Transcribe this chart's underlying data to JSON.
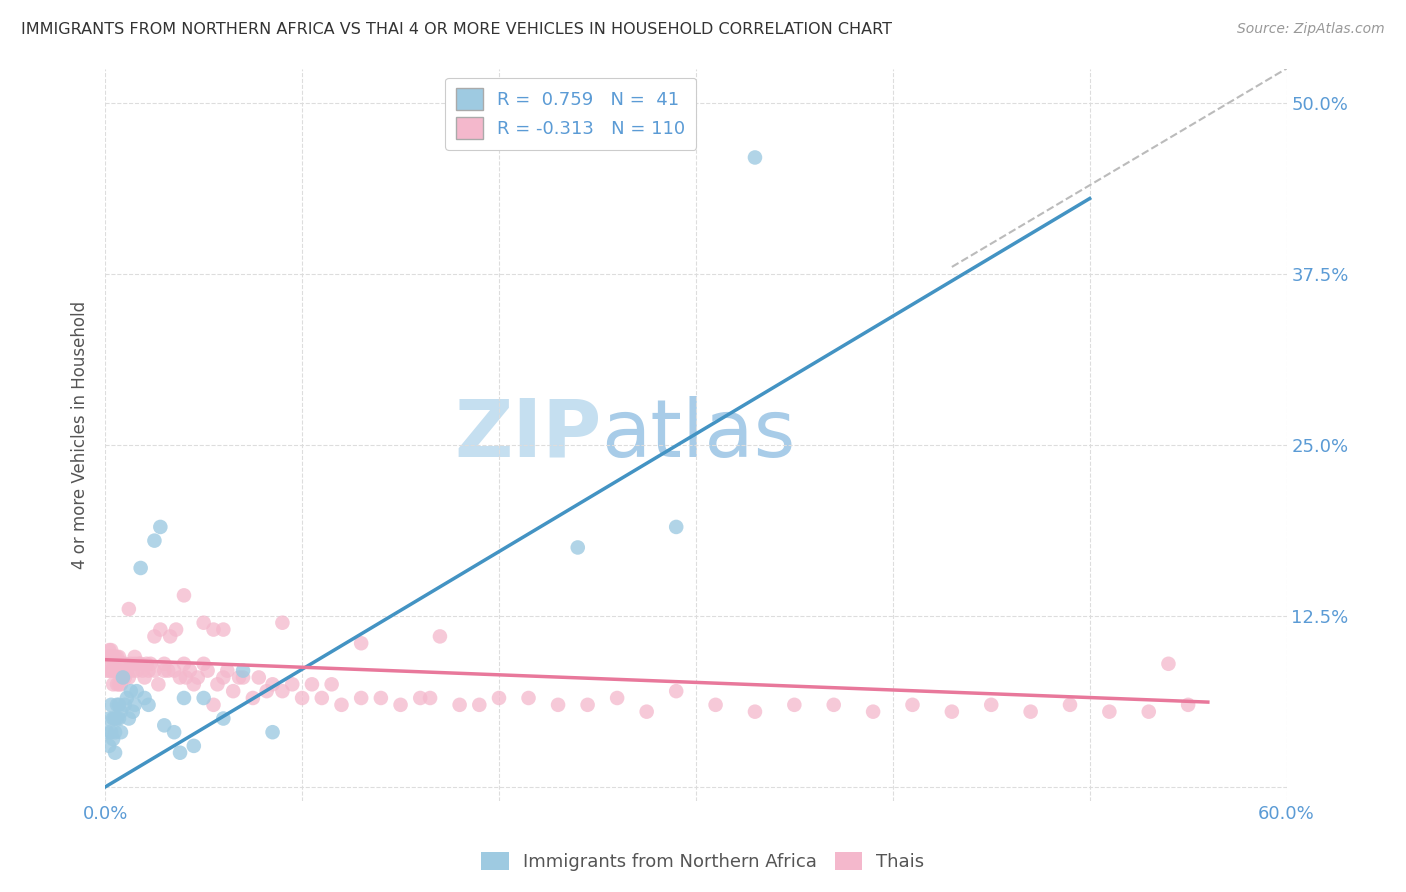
{
  "title": "IMMIGRANTS FROM NORTHERN AFRICA VS THAI 4 OR MORE VEHICLES IN HOUSEHOLD CORRELATION CHART",
  "source": "Source: ZipAtlas.com",
  "ylabel": "4 or more Vehicles in Household",
  "xlim": [
    0.0,
    0.6
  ],
  "ylim": [
    -0.01,
    0.525
  ],
  "yticks": [
    0.0,
    0.125,
    0.25,
    0.375,
    0.5
  ],
  "ytick_labels": [
    "",
    "12.5%",
    "25.0%",
    "37.5%",
    "50.0%"
  ],
  "xticks": [
    0.0,
    0.1,
    0.2,
    0.3,
    0.4,
    0.5,
    0.6
  ],
  "xtick_labels": [
    "0.0%",
    "",
    "",
    "",
    "",
    "",
    "60.0%"
  ],
  "blue_R": 0.759,
  "blue_N": 41,
  "pink_R": -0.313,
  "pink_N": 110,
  "blue_color": "#9ecae1",
  "pink_color": "#f4b8cc",
  "blue_line_color": "#4393c3",
  "pink_line_color": "#e8789b",
  "dashed_line_color": "#bbbbbb",
  "title_color": "#333333",
  "source_color": "#999999",
  "right_axis_color": "#5b9bd5",
  "watermark_zip_color": "#d0e8f8",
  "watermark_atlas_color": "#d0e8f8",
  "grid_color": "#dddddd",
  "legend_border_color": "#cccccc",
  "blue_x": [
    0.001,
    0.002,
    0.002,
    0.003,
    0.003,
    0.004,
    0.004,
    0.005,
    0.005,
    0.006,
    0.006,
    0.007,
    0.007,
    0.008,
    0.008,
    0.009,
    0.01,
    0.011,
    0.012,
    0.013,
    0.014,
    0.015,
    0.016,
    0.018,
    0.02,
    0.022,
    0.025,
    0.028,
    0.03,
    0.035,
    0.038,
    0.04,
    0.045,
    0.05,
    0.06,
    0.07,
    0.085,
    0.24,
    0.29,
    0.33,
    0.005
  ],
  "blue_y": [
    0.04,
    0.05,
    0.03,
    0.06,
    0.04,
    0.05,
    0.035,
    0.05,
    0.04,
    0.05,
    0.06,
    0.05,
    0.06,
    0.04,
    0.055,
    0.08,
    0.06,
    0.065,
    0.05,
    0.07,
    0.055,
    0.06,
    0.07,
    0.16,
    0.065,
    0.06,
    0.18,
    0.19,
    0.045,
    0.04,
    0.025,
    0.065,
    0.03,
    0.065,
    0.05,
    0.085,
    0.04,
    0.175,
    0.19,
    0.46,
    0.025
  ],
  "pink_x": [
    0.001,
    0.001,
    0.002,
    0.002,
    0.002,
    0.003,
    0.003,
    0.003,
    0.004,
    0.004,
    0.004,
    0.005,
    0.005,
    0.006,
    0.006,
    0.006,
    0.007,
    0.007,
    0.008,
    0.008,
    0.009,
    0.009,
    0.01,
    0.01,
    0.011,
    0.012,
    0.012,
    0.013,
    0.014,
    0.015,
    0.015,
    0.016,
    0.017,
    0.018,
    0.019,
    0.02,
    0.021,
    0.022,
    0.023,
    0.025,
    0.025,
    0.027,
    0.028,
    0.03,
    0.03,
    0.032,
    0.033,
    0.035,
    0.036,
    0.038,
    0.04,
    0.041,
    0.043,
    0.045,
    0.047,
    0.05,
    0.052,
    0.055,
    0.057,
    0.06,
    0.062,
    0.065,
    0.068,
    0.07,
    0.075,
    0.078,
    0.082,
    0.085,
    0.09,
    0.095,
    0.1,
    0.105,
    0.11,
    0.115,
    0.12,
    0.13,
    0.14,
    0.15,
    0.16,
    0.17,
    0.18,
    0.19,
    0.2,
    0.215,
    0.23,
    0.245,
    0.26,
    0.275,
    0.29,
    0.31,
    0.33,
    0.35,
    0.37,
    0.39,
    0.41,
    0.43,
    0.45,
    0.47,
    0.49,
    0.51,
    0.53,
    0.55,
    0.04,
    0.05,
    0.055,
    0.06,
    0.09,
    0.13,
    0.165,
    0.54
  ],
  "pink_y": [
    0.095,
    0.085,
    0.1,
    0.085,
    0.095,
    0.095,
    0.085,
    0.1,
    0.085,
    0.095,
    0.075,
    0.085,
    0.095,
    0.075,
    0.085,
    0.095,
    0.075,
    0.095,
    0.075,
    0.085,
    0.08,
    0.09,
    0.08,
    0.09,
    0.085,
    0.08,
    0.13,
    0.09,
    0.085,
    0.09,
    0.095,
    0.085,
    0.09,
    0.09,
    0.085,
    0.08,
    0.09,
    0.085,
    0.09,
    0.085,
    0.11,
    0.075,
    0.115,
    0.09,
    0.085,
    0.085,
    0.11,
    0.085,
    0.115,
    0.08,
    0.09,
    0.08,
    0.085,
    0.075,
    0.08,
    0.09,
    0.085,
    0.06,
    0.075,
    0.08,
    0.085,
    0.07,
    0.08,
    0.08,
    0.065,
    0.08,
    0.07,
    0.075,
    0.07,
    0.075,
    0.065,
    0.075,
    0.065,
    0.075,
    0.06,
    0.065,
    0.065,
    0.06,
    0.065,
    0.11,
    0.06,
    0.06,
    0.065,
    0.065,
    0.06,
    0.06,
    0.065,
    0.055,
    0.07,
    0.06,
    0.055,
    0.06,
    0.06,
    0.055,
    0.06,
    0.055,
    0.06,
    0.055,
    0.06,
    0.055,
    0.055,
    0.06,
    0.14,
    0.12,
    0.115,
    0.115,
    0.12,
    0.105,
    0.065,
    0.09
  ],
  "blue_line_x0": 0.0,
  "blue_line_y0": 0.0,
  "blue_line_x1": 0.5,
  "blue_line_y1": 0.43,
  "pink_line_x0": 0.0,
  "pink_line_y0": 0.093,
  "pink_line_x1": 0.56,
  "pink_line_y1": 0.062,
  "dash_line_x0": 0.43,
  "dash_line_y0": 0.38,
  "dash_line_x1": 0.6,
  "dash_line_y1": 0.525
}
